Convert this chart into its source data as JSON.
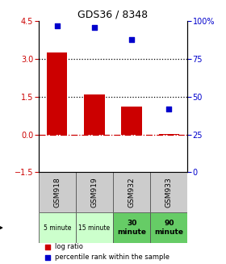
{
  "title": "GDS36 / 8348",
  "samples": [
    "GSM918",
    "GSM919",
    "GSM932",
    "GSM933"
  ],
  "time_labels": [
    "5 minute",
    "15 minute",
    "30\nminute",
    "90\nminute"
  ],
  "log_ratios": [
    3.25,
    1.6,
    1.1,
    0.02
  ],
  "percentile_ranks": [
    97.0,
    96.0,
    88.0,
    42.0
  ],
  "bar_color": "#cc0000",
  "dot_color": "#0000cc",
  "ylim_left": [
    -1.5,
    4.5
  ],
  "ylim_right": [
    0,
    100
  ],
  "yticks_left": [
    -1.5,
    0,
    1.5,
    3,
    4.5
  ],
  "yticks_right": [
    0,
    25,
    50,
    75,
    100
  ],
  "hline_dotted": [
    3.0,
    1.5
  ],
  "hline_dash": 0.0,
  "time_bg_light": "#ccffcc",
  "time_bg_dark": "#66cc66",
  "sample_bg": "#cccccc",
  "table_border": "#555555",
  "legend_red": "log ratio",
  "legend_blue": "percentile rank within the sample"
}
